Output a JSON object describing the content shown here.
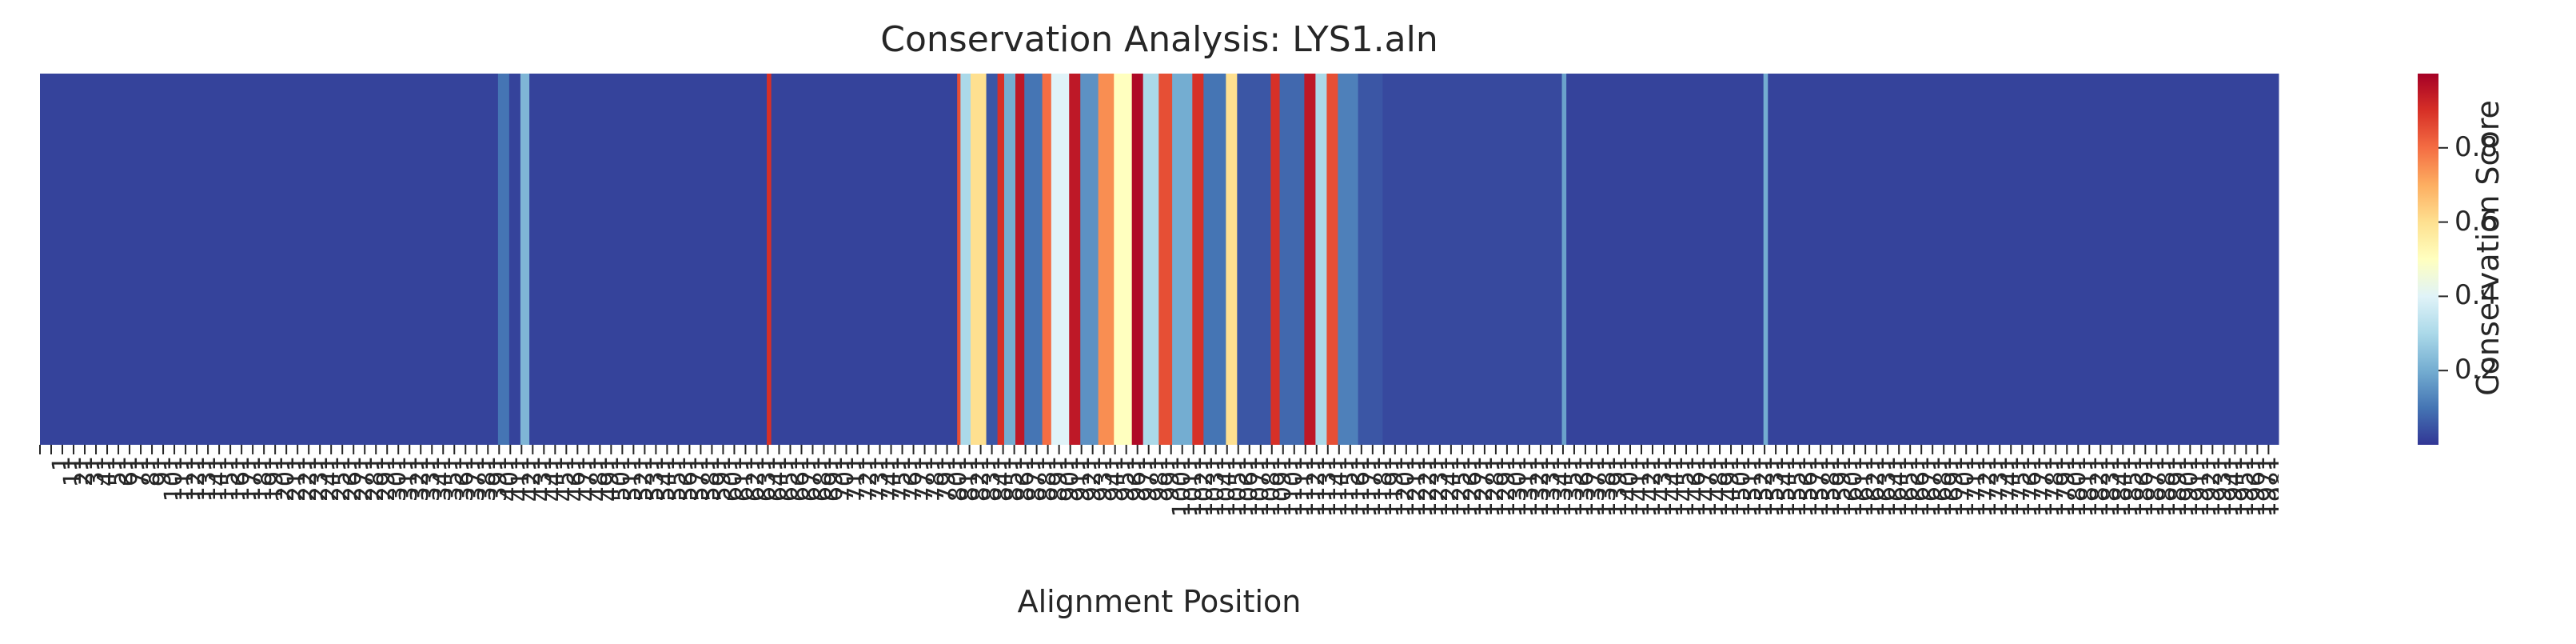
{
  "chart_data": {
    "type": "heatmap",
    "title": "Conservation Analysis: LYS1.aln",
    "xlabel": "Alignment Position",
    "ylabel": "",
    "colorbar_label": "Conservation Score",
    "colormap": "RdYlBu_r",
    "color_range": [
      0.0,
      1.0
    ],
    "colorbar_ticks": [
      0.2,
      0.4,
      0.6,
      0.8
    ],
    "colorbar_tick_labels": [
      "0.2",
      "0.4",
      "0.6",
      "0.8"
    ],
    "x_range": [
      1,
      2000
    ],
    "x_tick_labels_note": "Tick labels are dense and overlapping (~2000 positions); rendered as a compressed strip of numeric labels",
    "grid": false,
    "scores_by_region": [
      {
        "start": 1,
        "end": 410,
        "score": 0.02
      },
      {
        "start": 410,
        "end": 420,
        "score": 0.1
      },
      {
        "start": 420,
        "end": 430,
        "score": 0.02
      },
      {
        "start": 430,
        "end": 438,
        "score": 0.22
      },
      {
        "start": 438,
        "end": 650,
        "score": 0.02
      },
      {
        "start": 650,
        "end": 654,
        "score": 0.9
      },
      {
        "start": 654,
        "end": 820,
        "score": 0.02
      },
      {
        "start": 820,
        "end": 823,
        "score": 0.85
      },
      {
        "start": 823,
        "end": 832,
        "score": 0.3
      },
      {
        "start": 832,
        "end": 846,
        "score": 0.6
      },
      {
        "start": 846,
        "end": 856,
        "score": 0.05
      },
      {
        "start": 856,
        "end": 862,
        "score": 0.9
      },
      {
        "start": 862,
        "end": 872,
        "score": 0.2
      },
      {
        "start": 872,
        "end": 880,
        "score": 0.95
      },
      {
        "start": 880,
        "end": 896,
        "score": 0.1
      },
      {
        "start": 896,
        "end": 904,
        "score": 0.8
      },
      {
        "start": 904,
        "end": 920,
        "score": 0.4
      },
      {
        "start": 920,
        "end": 930,
        "score": 0.95
      },
      {
        "start": 930,
        "end": 946,
        "score": 0.15
      },
      {
        "start": 946,
        "end": 960,
        "score": 0.75
      },
      {
        "start": 960,
        "end": 976,
        "score": 0.5
      },
      {
        "start": 976,
        "end": 986,
        "score": 0.98
      },
      {
        "start": 986,
        "end": 1000,
        "score": 0.3
      },
      {
        "start": 1000,
        "end": 1012,
        "score": 0.85
      },
      {
        "start": 1012,
        "end": 1030,
        "score": 0.2
      },
      {
        "start": 1030,
        "end": 1040,
        "score": 0.9
      },
      {
        "start": 1040,
        "end": 1060,
        "score": 0.1
      },
      {
        "start": 1060,
        "end": 1070,
        "score": 0.6
      },
      {
        "start": 1070,
        "end": 1100,
        "score": 0.05
      },
      {
        "start": 1100,
        "end": 1108,
        "score": 0.9
      },
      {
        "start": 1108,
        "end": 1130,
        "score": 0.08
      },
      {
        "start": 1130,
        "end": 1140,
        "score": 0.95
      },
      {
        "start": 1140,
        "end": 1150,
        "score": 0.3
      },
      {
        "start": 1150,
        "end": 1160,
        "score": 0.85
      },
      {
        "start": 1160,
        "end": 1178,
        "score": 0.12
      },
      {
        "start": 1178,
        "end": 1200,
        "score": 0.05
      },
      {
        "start": 1200,
        "end": 1360,
        "score": 0.03
      },
      {
        "start": 1360,
        "end": 1364,
        "score": 0.18
      },
      {
        "start": 1364,
        "end": 1540,
        "score": 0.02
      },
      {
        "start": 1540,
        "end": 1544,
        "score": 0.2
      },
      {
        "start": 1544,
        "end": 2000,
        "score": 0.02
      }
    ]
  }
}
